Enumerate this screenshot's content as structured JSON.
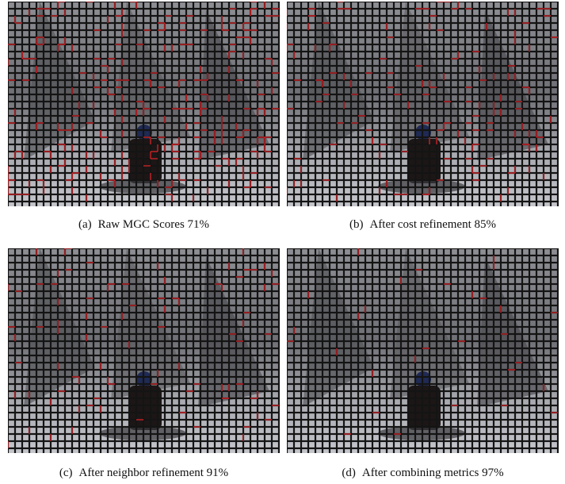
{
  "panels": [
    {
      "label": "(a)",
      "caption": "Raw MGC Scores 71%"
    },
    {
      "label": "(b)",
      "caption": "After cost refinement 85%"
    },
    {
      "label": "(c)",
      "caption": "After neighbor refinement 91%"
    },
    {
      "label": "(d)",
      "caption": "After combining metrics 97%"
    }
  ]
}
